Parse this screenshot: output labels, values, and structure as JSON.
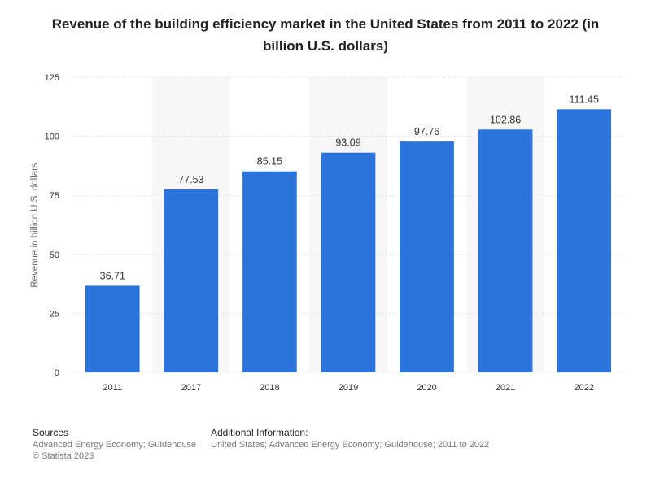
{
  "title": "Revenue of the building efficiency market in the United States from 2011 to 2022 (in billion U.S. dollars)",
  "chart_data": {
    "type": "bar",
    "categories": [
      "2011",
      "2017",
      "2018",
      "2019",
      "2020",
      "2021",
      "2022"
    ],
    "values": [
      36.71,
      77.53,
      85.15,
      93.09,
      97.76,
      102.86,
      111.45
    ],
    "value_labels": [
      "36.71",
      "77.53",
      "85.15",
      "93.09",
      "97.76",
      "102.86",
      "111.45"
    ],
    "ylabel": "Revenue in billion U.S. dollars",
    "xlabel": "",
    "ylim": [
      0,
      125
    ],
    "yticks": [
      "0",
      "25",
      "50",
      "75",
      "100",
      "125"
    ],
    "ytick_values": [
      0,
      25,
      50,
      75,
      100,
      125
    ],
    "bar_color": "#2a74dc",
    "grid": true,
    "alternating_band_color": "#f7f7f7"
  },
  "footer": {
    "sources_heading": "Sources",
    "sources_line1": "Advanced Energy Economy; Guidehouse",
    "sources_line2": "© Statista 2023",
    "additional_heading": "Additional Information:",
    "additional_line1": "United States; Advanced Energy Economy; Guidehouse; 2011 to 2022"
  }
}
